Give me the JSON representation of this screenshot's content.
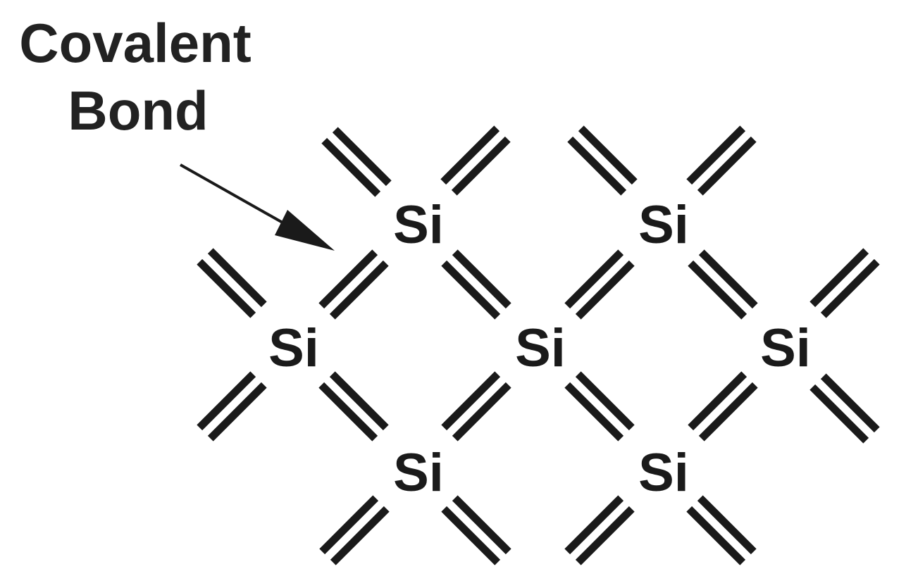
{
  "label": {
    "line1": "Covalent",
    "line2": "Bond"
  },
  "atoms": [
    {
      "id": "si-top-left",
      "symbol": "Si"
    },
    {
      "id": "si-top-right",
      "symbol": "Si"
    },
    {
      "id": "si-middle-left",
      "symbol": "Si"
    },
    {
      "id": "si-middle-center",
      "symbol": "Si"
    },
    {
      "id": "si-middle-right",
      "symbol": "Si"
    },
    {
      "id": "si-bottom-left",
      "symbol": "Si"
    },
    {
      "id": "si-bottom-right",
      "symbol": "Si"
    }
  ],
  "colors": {
    "ink": "#1a1a1a",
    "caption": "#222222",
    "background": "#ffffff"
  }
}
